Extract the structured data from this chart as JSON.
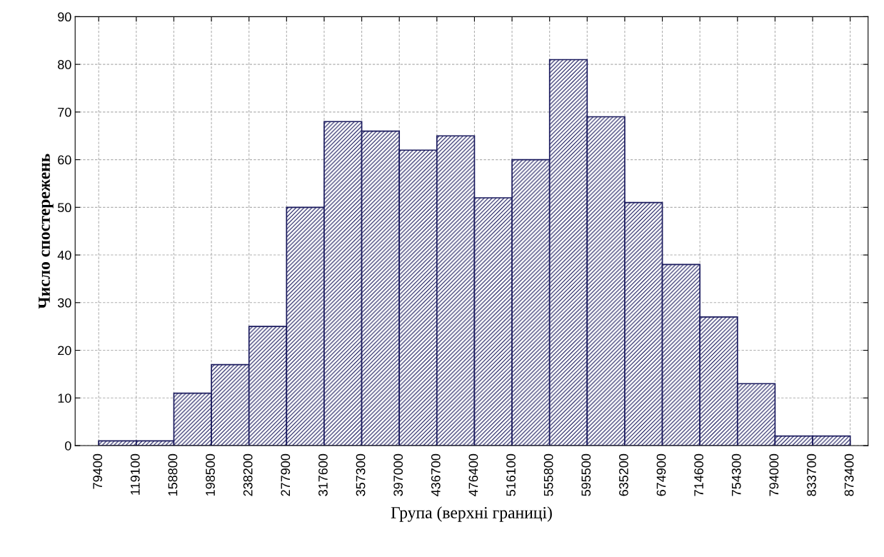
{
  "chart_data": {
    "type": "histogram",
    "xlabel": "Група (верхні границі)",
    "ylabel": "Число спостережень",
    "bins": [
      79400,
      119100,
      158800,
      198500,
      238200,
      277900,
      317600,
      357300,
      397000,
      436700,
      476400,
      516100,
      555800,
      595500,
      635200,
      674900,
      714600,
      754300,
      794000,
      833700,
      873400
    ],
    "values": [
      1,
      1,
      11,
      17,
      25,
      50,
      68,
      66,
      62,
      65,
      52,
      60,
      81,
      69,
      51,
      38,
      27,
      13,
      2,
      2
    ],
    "color": "#1a1a5e",
    "xlim": [
      54500,
      892300
    ],
    "ylim": [
      0,
      90
    ],
    "xticks": [
      79400,
      119100,
      158800,
      198500,
      238200,
      277900,
      317600,
      357300,
      397000,
      436700,
      476400,
      516100,
      555800,
      595500,
      635200,
      674900,
      714600,
      754300,
      794000,
      833700,
      873400
    ],
    "yticks": [
      0,
      10,
      20,
      30,
      40,
      50,
      60,
      70,
      80,
      90
    ],
    "grid": true
  }
}
